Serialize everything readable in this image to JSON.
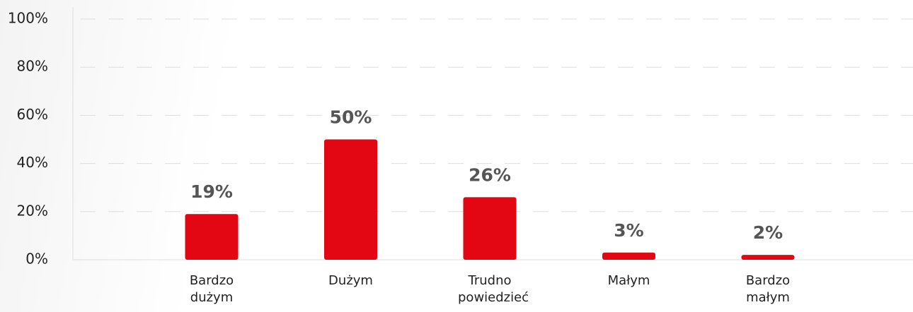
{
  "chart_data": {
    "type": "bar",
    "categories": [
      "Bardzo dużym",
      "Dużym",
      "Trudno powiedzieć",
      "Małym",
      "Bardzo małym"
    ],
    "values": [
      19,
      50,
      26,
      3,
      2
    ],
    "value_labels": [
      "19%",
      "50%",
      "26%",
      "3%",
      "2%"
    ],
    "color": "#e30613",
    "ylim": [
      0,
      100
    ],
    "yticks": [
      {
        "value": 0,
        "label": "0%"
      },
      {
        "value": 20,
        "label": "20%"
      },
      {
        "value": 40,
        "label": "40%"
      },
      {
        "value": 60,
        "label": "60%"
      },
      {
        "value": 80,
        "label": "80%"
      },
      {
        "value": 100,
        "label": "100%"
      }
    ],
    "grid": true
  }
}
